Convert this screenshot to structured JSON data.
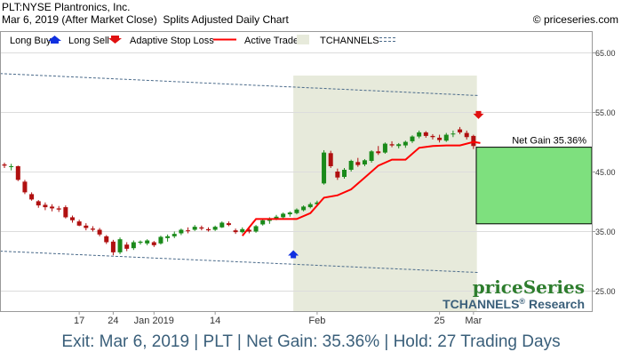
{
  "header": {
    "line1": "PLT:NYSE Plantronics, Inc.",
    "line2": "Mar 6, 2019 (After Market Close)  Splits Adjusted Daily Chart",
    "copyright": "© priceseries.com"
  },
  "legend": {
    "long_buy": "Long Buy",
    "long_sell": "Long Sell",
    "adaptive_stop": "Adaptive Stop Loss",
    "active_trade": "Active Trade",
    "tchannels": "TCHANNELS"
  },
  "net_gain_label": "Net Gain 35.36%",
  "brand": {
    "logo": "priceSeries",
    "research": "TCHANNELS",
    "research_suffix": "Research",
    "reg": "®"
  },
  "footer": "Exit: Mar 6, 2019 | PLT | Net Gain: 35.36% | Hold: 27 Trading Days",
  "colors": {
    "up": "#1a8a1a",
    "down": "#b01010",
    "stop": "#ff0000",
    "active_bg": "#e7eadb",
    "gain_box": "#7ee07e",
    "channel": "#4a6a8a",
    "buy_arrow": "#1030e0",
    "sell_arrow": "#e01010",
    "footer_text": "#3a5f7a",
    "logo": "#2e7d2e",
    "research": "#3a5f7a"
  },
  "chart_data": {
    "type": "candlestick",
    "ylim": [
      21.5,
      68.5
    ],
    "y_ticks": [
      "65.00",
      "55.00",
      "45.00",
      "35.00",
      "25.00"
    ],
    "y_tick_values": [
      65,
      55,
      45,
      35,
      25
    ],
    "x_tick_labels": [
      "17",
      "24",
      "Jan 2019",
      "14",
      "Feb",
      "25",
      "Mar"
    ],
    "x_tick_index": [
      11,
      16,
      22,
      31,
      46,
      64,
      69
    ],
    "candles": [
      [
        46.2,
        46.5,
        45.6,
        46.0
      ],
      [
        45.8,
        46.3,
        45.2,
        45.9
      ],
      [
        45.9,
        46.0,
        43.4,
        43.6
      ],
      [
        43.3,
        43.6,
        41.2,
        41.5
      ],
      [
        41.2,
        41.5,
        40.1,
        40.3
      ],
      [
        40.0,
        40.2,
        38.9,
        39.3
      ],
      [
        39.4,
        39.8,
        38.5,
        39.0
      ],
      [
        39.1,
        39.5,
        38.3,
        38.8
      ],
      [
        38.8,
        39.2,
        38.2,
        38.6
      ],
      [
        39.0,
        39.3,
        37.1,
        37.3
      ],
      [
        37.3,
        37.6,
        36.4,
        36.8
      ],
      [
        36.6,
        36.9,
        35.8,
        35.9
      ],
      [
        35.9,
        36.3,
        35.1,
        35.5
      ],
      [
        35.4,
        35.8,
        34.9,
        35.2
      ],
      [
        35.2,
        35.5,
        34.1,
        34.4
      ],
      [
        34.1,
        34.3,
        32.8,
        33.1
      ],
      [
        33.2,
        33.5,
        30.9,
        31.4
      ],
      [
        31.4,
        33.9,
        31.1,
        33.6
      ],
      [
        32.7,
        33.1,
        31.6,
        32.0
      ],
      [
        32.1,
        33.4,
        31.8,
        33.1
      ],
      [
        33.0,
        33.4,
        32.7,
        33.2
      ],
      [
        32.9,
        33.6,
        32.6,
        33.4
      ],
      [
        33.1,
        33.3,
        32.3,
        32.6
      ],
      [
        32.9,
        34.2,
        32.7,
        34.0
      ],
      [
        33.8,
        34.4,
        33.2,
        34.1
      ],
      [
        34.1,
        34.9,
        33.8,
        34.5
      ],
      [
        34.6,
        35.4,
        34.3,
        35.2
      ],
      [
        35.1,
        35.6,
        34.6,
        35.0
      ],
      [
        35.2,
        36.0,
        35.0,
        35.7
      ],
      [
        35.6,
        35.9,
        35.1,
        35.4
      ],
      [
        35.3,
        35.6,
        34.9,
        35.1
      ],
      [
        35.2,
        35.9,
        35.0,
        35.7
      ],
      [
        35.6,
        36.6,
        35.5,
        36.4
      ],
      [
        36.3,
        36.6,
        35.8,
        36.0
      ],
      [
        35.1,
        35.4,
        34.5,
        34.8
      ],
      [
        34.8,
        35.6,
        34.6,
        35.3
      ],
      [
        35.2,
        35.6,
        34.6,
        34.9
      ],
      [
        34.9,
        36.0,
        34.7,
        35.8
      ],
      [
        36.1,
        37.0,
        35.9,
        36.8
      ],
      [
        36.7,
        37.3,
        36.2,
        37.1
      ],
      [
        37.0,
        37.7,
        36.8,
        37.4
      ],
      [
        37.3,
        38.1,
        37.1,
        37.9
      ],
      [
        37.8,
        38.3,
        37.4,
        38.1
      ],
      [
        38.0,
        38.8,
        37.8,
        38.6
      ],
      [
        38.5,
        39.3,
        38.3,
        39.1
      ],
      [
        39.0,
        39.8,
        38.8,
        39.5
      ],
      [
        39.5,
        40.1,
        39.2,
        39.8
      ],
      [
        43.0,
        48.6,
        42.8,
        48.2
      ],
      [
        48.1,
        48.5,
        45.6,
        45.9
      ],
      [
        45.0,
        45.5,
        43.6,
        44.0
      ],
      [
        44.1,
        45.6,
        43.8,
        45.3
      ],
      [
        45.3,
        47.0,
        45.0,
        46.8
      ],
      [
        46.6,
        47.3,
        45.8,
        46.1
      ],
      [
        46.2,
        47.1,
        45.9,
        46.9
      ],
      [
        46.8,
        48.6,
        46.5,
        48.4
      ],
      [
        48.4,
        49.3,
        47.8,
        48.1
      ],
      [
        48.2,
        49.9,
        48.0,
        49.7
      ],
      [
        49.6,
        50.1,
        49.1,
        49.4
      ],
      [
        49.3,
        49.8,
        48.9,
        49.6
      ],
      [
        49.4,
        50.2,
        49.0,
        50.0
      ],
      [
        50.1,
        51.1,
        49.8,
        50.9
      ],
      [
        50.9,
        51.9,
        50.6,
        51.6
      ],
      [
        51.6,
        51.8,
        50.7,
        51.0
      ],
      [
        51.0,
        51.3,
        50.4,
        50.8
      ],
      [
        50.7,
        51.2,
        49.9,
        50.3
      ],
      [
        50.2,
        51.5,
        50.0,
        51.2
      ],
      [
        51.3,
        51.9,
        50.8,
        51.4
      ],
      [
        52.1,
        52.5,
        51.3,
        51.6
      ],
      [
        51.5,
        51.9,
        50.4,
        50.8
      ],
      [
        51.0,
        51.2,
        48.8,
        49.3
      ]
    ],
    "adaptive_stop_loss": [
      [
        35,
        34.2
      ],
      [
        37,
        37.0
      ],
      [
        41,
        37.0
      ],
      [
        43,
        37.0
      ],
      [
        45,
        38.0
      ],
      [
        47,
        40.6
      ],
      [
        49,
        41.0
      ],
      [
        51,
        42.0
      ],
      [
        53,
        44.0
      ],
      [
        55,
        46.0
      ],
      [
        57,
        47.0
      ],
      [
        59,
        47.0
      ],
      [
        61,
        49.0
      ],
      [
        63,
        49.3
      ],
      [
        65,
        49.4
      ],
      [
        67,
        49.4
      ],
      [
        69,
        50.0
      ],
      [
        70,
        49.8
      ]
    ],
    "tchannels": {
      "upper": {
        "start": [
          0,
          61.5
        ],
        "end": [
          70,
          57.8
        ]
      },
      "lower": {
        "start": [
          0,
          31.6
        ],
        "end": [
          70,
          28.0
        ]
      }
    },
    "active_trade": {
      "start_index": 43,
      "end_index": 70
    },
    "long_buy": {
      "index": 43,
      "value": 31.0
    },
    "long_sell": {
      "index": 70,
      "value": 54.6
    },
    "net_gain_box": {
      "bottom": 36.2,
      "top": 49.1
    }
  }
}
